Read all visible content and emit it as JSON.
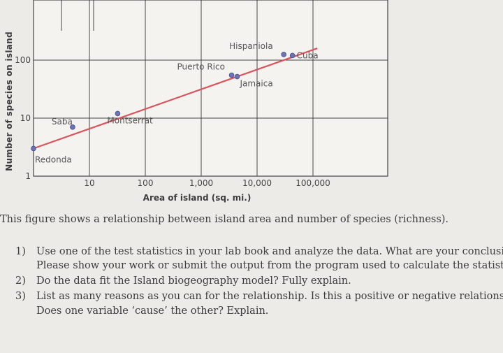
{
  "chart_data": {
    "type": "scatter",
    "x_scale": "log",
    "y_scale": "log",
    "xlabel": "Area of island (sq. mi.)",
    "ylabel": "Number of species on island",
    "x_ticks": [
      "10",
      "100",
      "1,000",
      "10,000",
      "100,000"
    ],
    "y_ticks": [
      "1",
      "10",
      "100"
    ],
    "grid": true,
    "points": [
      {
        "label": "Redonda",
        "x": 1,
        "y": 3
      },
      {
        "label": "Saba",
        "x": 5,
        "y": 7
      },
      {
        "label": "Montserrat",
        "x": 32,
        "y": 12
      },
      {
        "label": "Puerto Rico",
        "x": 3500,
        "y": 55
      },
      {
        "label": "Jamaica",
        "x": 4400,
        "y": 52
      },
      {
        "label": "Hispaniola",
        "x": 30000,
        "y": 125
      },
      {
        "label": "Cuba",
        "x": 43000,
        "y": 120
      }
    ],
    "trendline": {
      "x": [
        1,
        120000
      ],
      "y": [
        3,
        160
      ]
    },
    "colors": {
      "points": "#6a72b8",
      "trendline": "#d9545c",
      "grid": "#444444"
    }
  },
  "caption": "This figure shows a relationship between island area and number of species (richness).",
  "questions": [
    {
      "number": "1)",
      "lines": [
        "Use one of the test statistics in your lab book and analyze the data. What are your conclusions?",
        "Please show your work or submit the output from the program used to calculate the statistic."
      ]
    },
    {
      "number": "2)",
      "lines": [
        "Do the data fit the Island biogeography model? Fully explain."
      ]
    },
    {
      "number": "3)",
      "lines": [
        "List as many reasons as you can for the relationship. Is this a positive or negative relationship?",
        "Does one variable ‘cause’ the other? Explain."
      ]
    }
  ]
}
